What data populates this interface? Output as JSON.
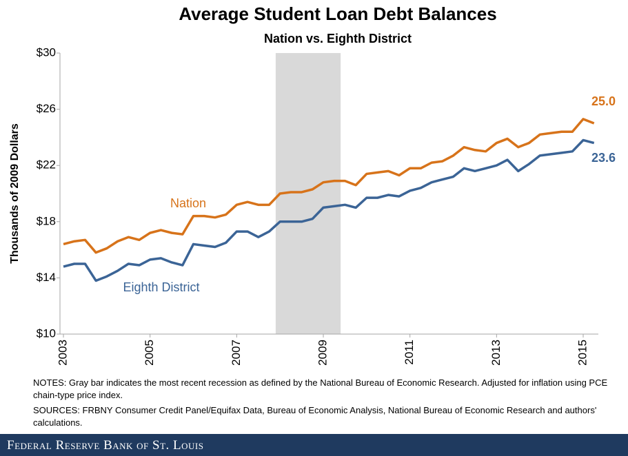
{
  "chart_data": {
    "type": "line",
    "title": "Average Student Loan Debt Balances",
    "subtitle": "Nation vs. Eighth District",
    "y_label": "Thousands  of 2009 Dollars",
    "x": [
      2003,
      2003.25,
      2003.5,
      2003.75,
      2004,
      2004.25,
      2004.5,
      2004.75,
      2005,
      2005.25,
      2005.5,
      2005.75,
      2006,
      2006.25,
      2006.5,
      2006.75,
      2007,
      2007.25,
      2007.5,
      2007.75,
      2008,
      2008.25,
      2008.5,
      2008.75,
      2009,
      2009.25,
      2009.5,
      2009.75,
      2010,
      2010.25,
      2010.5,
      2010.75,
      2011,
      2011.25,
      2011.5,
      2011.75,
      2012,
      2012.25,
      2012.5,
      2012.75,
      2013,
      2013.25,
      2013.5,
      2013.75,
      2014,
      2014.25,
      2014.5,
      2014.75,
      2015,
      2015.25
    ],
    "series": [
      {
        "name": "Nation",
        "color": "#d7731a",
        "values": [
          16.4,
          16.6,
          16.7,
          15.8,
          16.1,
          16.6,
          16.9,
          16.7,
          17.2,
          17.4,
          17.2,
          17.1,
          18.4,
          18.4,
          18.3,
          18.5,
          19.2,
          19.4,
          19.2,
          19.2,
          20.0,
          20.1,
          20.1,
          20.3,
          20.8,
          20.9,
          20.9,
          20.6,
          21.4,
          21.5,
          21.6,
          21.3,
          21.8,
          21.8,
          22.2,
          22.3,
          22.7,
          23.3,
          23.1,
          23.0,
          23.6,
          23.9,
          23.3,
          23.6,
          24.2,
          24.3,
          24.4,
          24.4,
          25.3,
          25.0
        ],
        "value_labels": [
          null,
          null,
          null,
          null,
          null,
          null,
          null,
          null,
          null,
          null,
          null,
          null,
          null,
          null,
          null,
          null,
          null,
          null,
          null,
          null,
          null,
          null,
          null,
          null,
          null,
          null,
          null,
          null,
          null,
          null,
          null,
          null,
          null,
          null,
          null,
          null,
          null,
          null,
          null,
          null,
          null,
          null,
          null,
          null,
          null,
          null,
          null,
          null,
          null,
          "25.0"
        ]
      },
      {
        "name": "Eighth District",
        "color": "#3b6496",
        "values": [
          14.8,
          15.0,
          15.0,
          13.8,
          14.1,
          14.5,
          15.0,
          14.9,
          15.3,
          15.4,
          15.1,
          14.9,
          16.4,
          16.3,
          16.2,
          16.5,
          17.3,
          17.3,
          16.9,
          17.3,
          18.0,
          18.0,
          18.0,
          18.2,
          19.0,
          19.1,
          19.2,
          19.0,
          19.7,
          19.7,
          19.9,
          19.8,
          20.2,
          20.4,
          20.8,
          21.0,
          21.2,
          21.8,
          21.6,
          21.8,
          22.0,
          22.4,
          21.6,
          22.1,
          22.7,
          22.8,
          22.9,
          23.0,
          23.8,
          23.6
        ],
        "value_labels": [
          null,
          null,
          null,
          null,
          null,
          null,
          null,
          null,
          null,
          null,
          null,
          null,
          null,
          null,
          null,
          null,
          null,
          null,
          null,
          null,
          null,
          null,
          null,
          null,
          null,
          null,
          null,
          null,
          null,
          null,
          null,
          null,
          null,
          null,
          null,
          null,
          null,
          null,
          null,
          null,
          null,
          null,
          null,
          null,
          null,
          null,
          null,
          null,
          null,
          "23.6"
        ]
      }
    ],
    "recession": [
      2007.9,
      2009.4
    ],
    "xlim": [
      2002.92,
      2015.35
    ],
    "xticks": [
      2003,
      2005,
      2007,
      2009,
      2011,
      2013,
      2015
    ],
    "ylim": [
      10,
      30
    ],
    "yticks": [
      {
        "value": 10,
        "label": "$10"
      },
      {
        "value": 14,
        "label": "$14"
      },
      {
        "value": 18,
        "label": "$18"
      },
      {
        "value": 22,
        "label": "$22"
      },
      {
        "value": 26,
        "label": "$26"
      },
      {
        "value": 30,
        "label": "$30"
      }
    ],
    "notes": "NOTES: Gray bar indicates the most recent recession as defined by the National Bureau of Economic Research. Adjusted for inflation using PCE chain-type price index.",
    "sources": "SOURCES: FRBNY Consumer Credit Panel/Equifax Data, Bureau of Economic Analysis, National Bureau of Economic Research and authors' calculations.",
    "footer": "Federal Reserve Bank of St. Louis"
  }
}
